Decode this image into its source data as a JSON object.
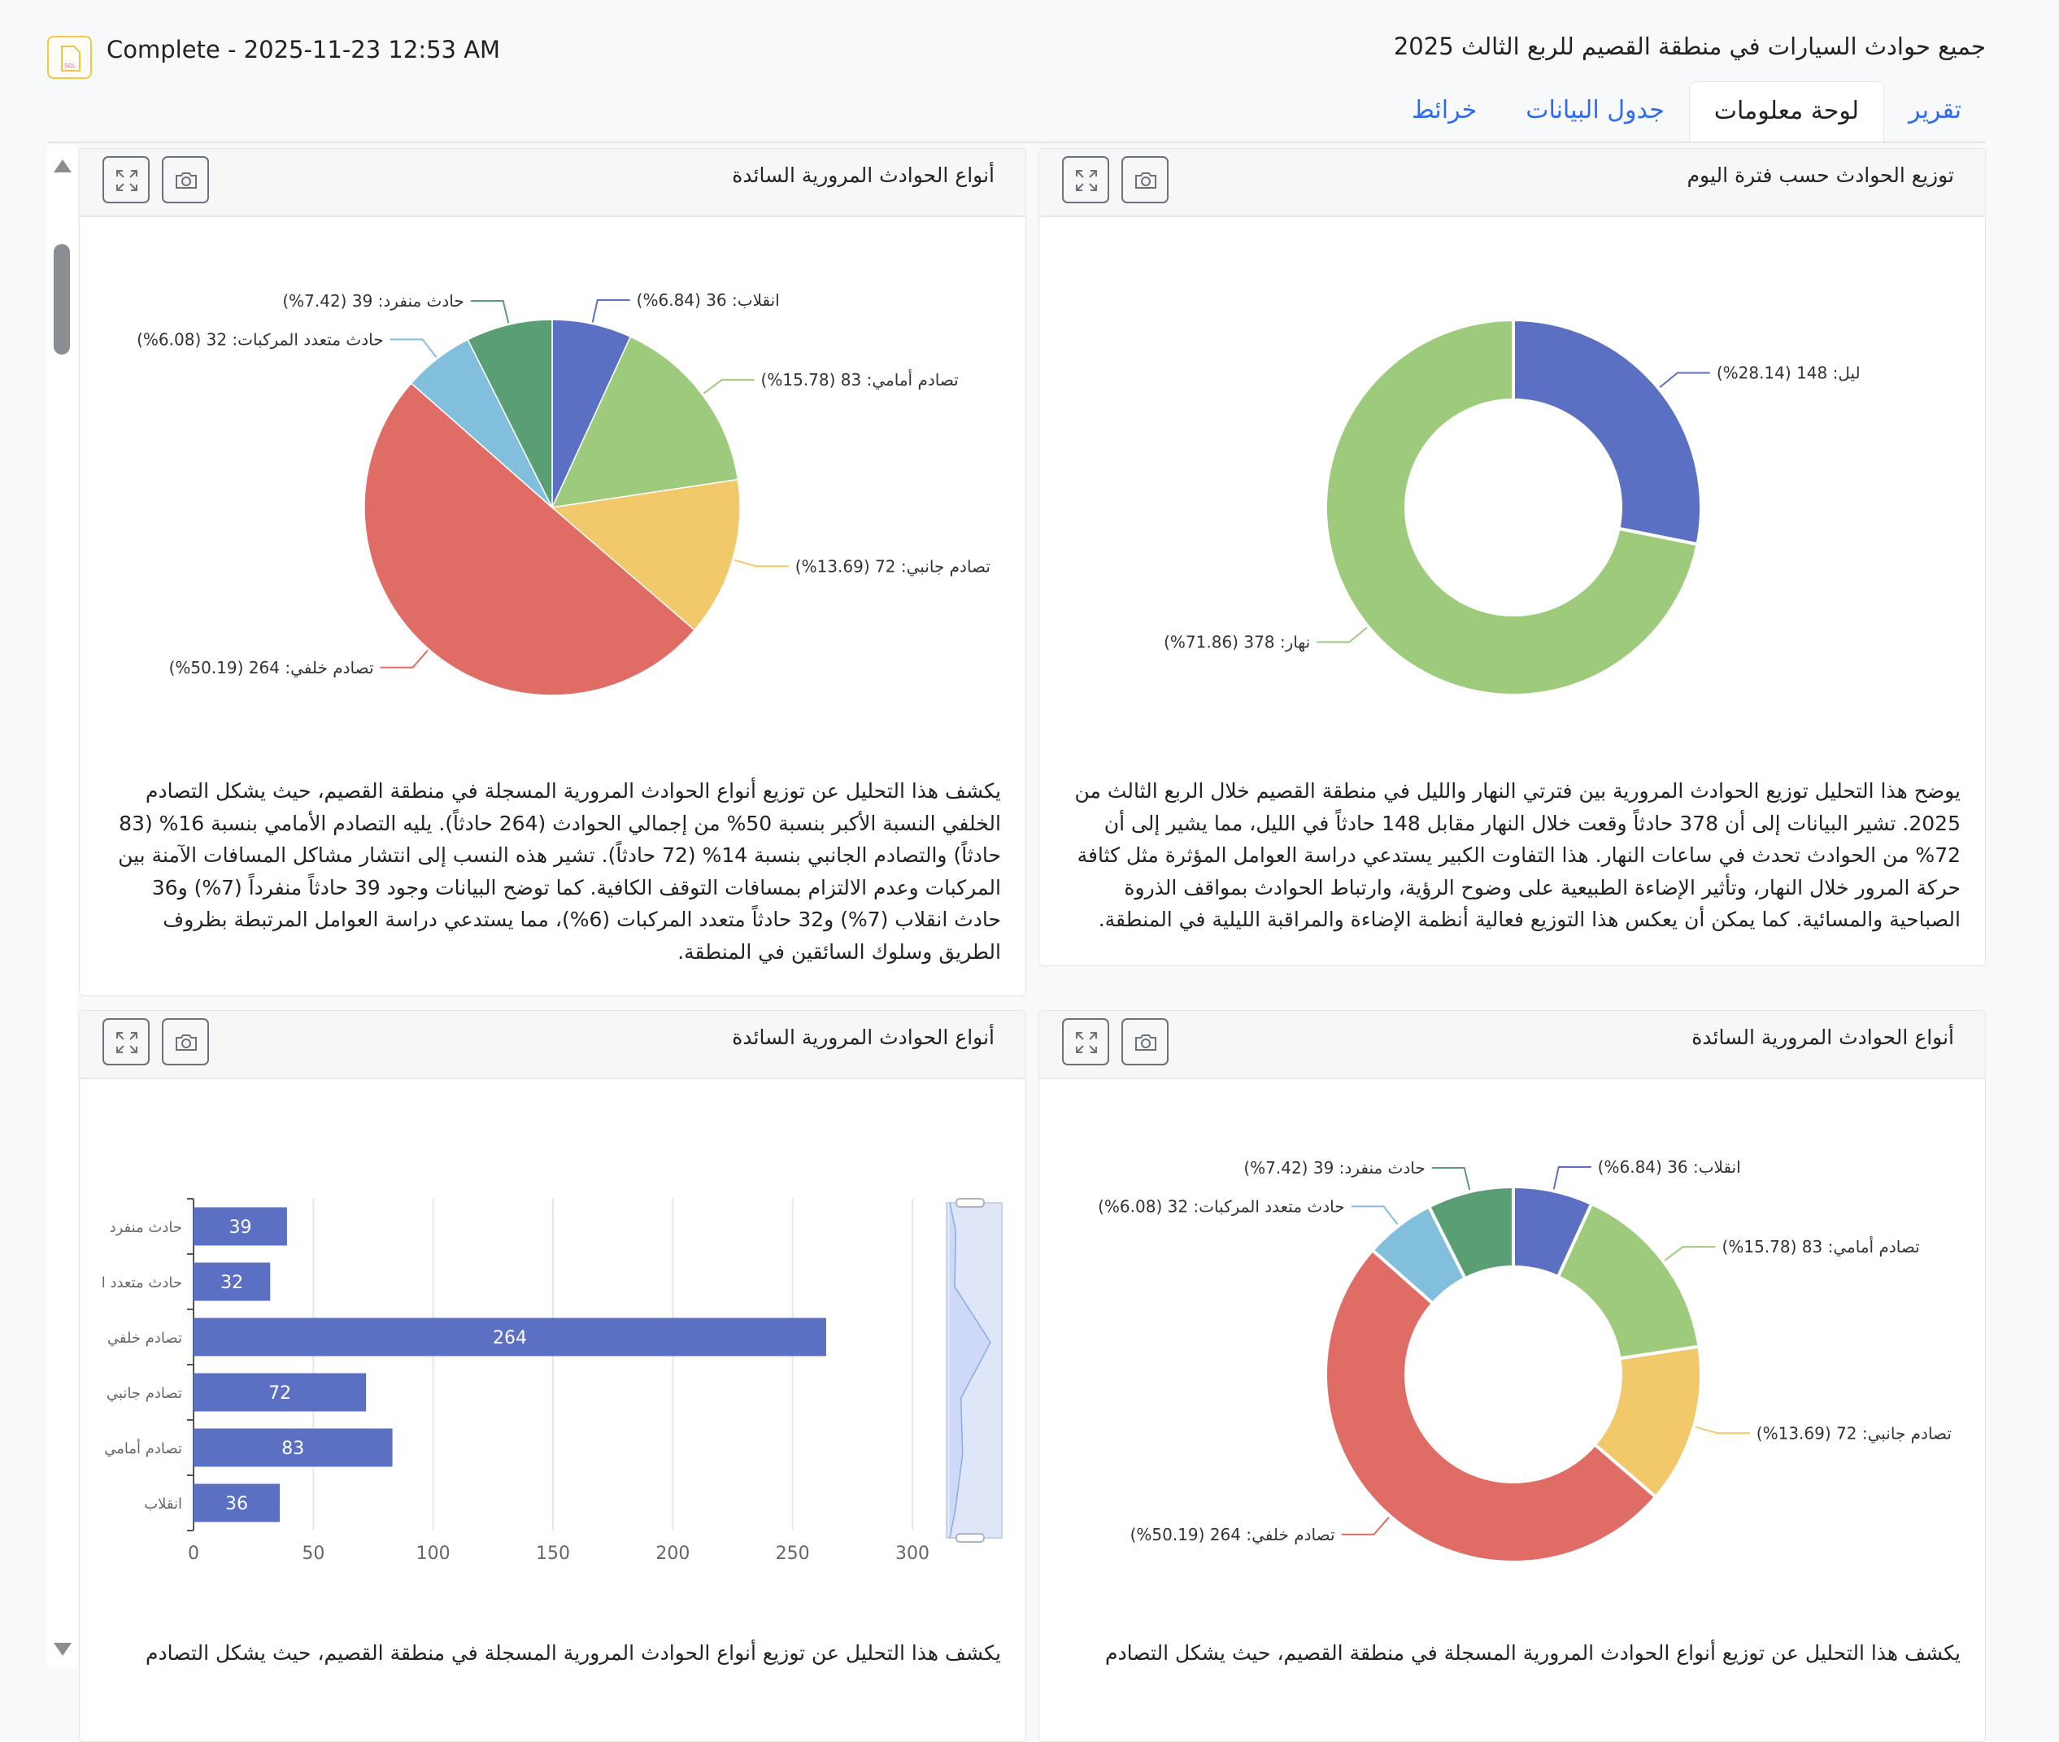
{
  "header": {
    "file_icon": "sql-file-icon",
    "status": "Complete - 2025-11-23 12:53 AM",
    "title": "جميع حوادث السيارات في منطقة القصيم للربع الثالث 2025"
  },
  "tabs": [
    {
      "label": "تقرير",
      "active": false
    },
    {
      "label": "لوحة معلومات",
      "active": true
    },
    {
      "label": "جدول البيانات",
      "active": false
    },
    {
      "label": "خرائط",
      "active": false
    }
  ],
  "panels": [
    {
      "title": "أنواع الحوادث المرورية السائدة",
      "description": "يكشف هذا التحليل عن توزيع أنواع الحوادث المرورية المسجلة في منطقة القصيم، حيث يشكل التصادم الخلفي النسبة الأكبر بنسبة 50% من إجمالي الحوادث (264 حادثاً). يليه التصادم الأمامي بنسبة 16% (83 حادثاً) والتصادم الجانبي بنسبة 14% (72 حادثاً). تشير هذه النسب إلى انتشار مشاكل المسافات الآمنة بين المركبات وعدم الالتزام بمسافات التوقف الكافية. كما توضح البيانات وجود 39 حادثاً منفرداً (7%) و36 حادث انقلاب (7%) و32 حادثاً متعدد المركبات (6%)، مما يستدعي دراسة العوامل المرتبطة بظروف الطريق وسلوك السائقين في المنطقة."
    },
    {
      "title": "توزيع الحوادث حسب فترة اليوم",
      "description": "يوضح هذا التحليل توزيع الحوادث المرورية بين فترتي النهار والليل في منطقة القصيم خلال الربع الثالث من 2025. تشير البيانات إلى أن 378 حادثاً وقعت خلال النهار مقابل 148 حادثاً في الليل، مما يشير إلى أن 72% من الحوادث تحدث في ساعات النهار. هذا التفاوت الكبير يستدعي دراسة العوامل المؤثرة مثل كثافة حركة المرور خلال النهار، وتأثير الإضاءة الطبيعية على وضوح الرؤية، وارتباط الحوادث بمواقف الذروة الصباحية والمسائية. كما يمكن أن يعكس هذا التوزيع فعالية أنظمة الإضاءة والمراقبة الليلية في المنطقة."
    },
    {
      "title": "أنواع الحوادث المرورية السائدة",
      "description": "يكشف هذا التحليل عن توزيع أنواع الحوادث المرورية المسجلة في منطقة القصيم، حيث يشكل التصادم"
    },
    {
      "title": "أنواع الحوادث المرورية السائدة",
      "description": "يكشف هذا التحليل عن توزيع أنواع الحوادث المرورية المسجلة في منطقة القصيم، حيث يشكل التصادم"
    }
  ],
  "panel_buttons": {
    "expand_icon": "expand-icon",
    "camera_icon": "camera-icon"
  },
  "chart_data": [
    {
      "type": "pie",
      "slices": [
        {
          "name": "انقلاب",
          "value": 36,
          "percent": 6.84,
          "label": "انقلاب: 36 (6.84%)",
          "color": "#5b70c3"
        },
        {
          "name": "تصادم أمامي",
          "value": 83,
          "percent": 15.78,
          "label": "تصادم أمامي: 83 (15.78%)",
          "color": "#9dca7b"
        },
        {
          "name": "تصادم جانبي",
          "value": 72,
          "percent": 13.69,
          "label": "تصادم جانبي: 72 (13.69%)",
          "color": "#f2c96a"
        },
        {
          "name": "تصادم خلفي",
          "value": 264,
          "percent": 50.19,
          "label": "تصادم خلفي: 264 (50.19%)",
          "color": "#e06c66"
        },
        {
          "name": "حادث متعدد المركبات",
          "value": 32,
          "percent": 6.08,
          "label": "حادث متعدد المركبات: 32 (6.08%)",
          "color": "#82bfdc"
        },
        {
          "name": "حادث منفرد",
          "value": 39,
          "percent": 7.42,
          "label": "حادث منفرد: 39 (7.42%)",
          "color": "#5a9e73"
        }
      ]
    },
    {
      "type": "donut",
      "slices": [
        {
          "name": "ليل",
          "value": 148,
          "percent": 28.14,
          "label": "ليل: 148 (28.14%)",
          "color": "#5b70c3"
        },
        {
          "name": "نهار",
          "value": 378,
          "percent": 71.86,
          "label": "نهار: 378 (71.86%)",
          "color": "#9dca7b"
        }
      ]
    },
    {
      "type": "bar",
      "orientation": "horizontal",
      "categories": [
        "حادث منفرد",
        "حادث متعدد ا",
        "تصادم خلفي",
        "تصادم جانبي",
        "تصادم أمامي",
        "انقلاب"
      ],
      "values": [
        39,
        32,
        264,
        72,
        83,
        36
      ],
      "xlim": [
        0,
        300
      ],
      "x_ticks": [
        "0",
        "50",
        "100",
        "150",
        "200",
        "250",
        "300"
      ],
      "grid": true,
      "color": "#5b70c3",
      "data_zoom": "vertical-slider"
    },
    {
      "type": "donut",
      "slices": [
        {
          "name": "انقلاب",
          "value": 36,
          "percent": 6.84,
          "label": "انقلاب: 36 (6.84%)",
          "color": "#5b70c3"
        },
        {
          "name": "تصادم أمامي",
          "value": 83,
          "percent": 15.78,
          "label": "تصادم أمامي: 83 (15.78%)",
          "color": "#9dca7b"
        },
        {
          "name": "تصادم جانبي",
          "value": 72,
          "percent": 13.69,
          "label": "تصادم جانبي: 72 (13.69%)",
          "color": "#f2c96a"
        },
        {
          "name": "تصادم خلفي",
          "value": 264,
          "percent": 50.19,
          "label": "تصادم خلفي: 264 (50.19%)",
          "color": "#e06c66"
        },
        {
          "name": "حادث متعدد المركبات",
          "value": 32,
          "percent": 6.08,
          "label": "حادث متعدد المركبات: 32 (6.08%)",
          "color": "#82bfdc"
        },
        {
          "name": "حادث منفرد",
          "value": 39,
          "percent": 7.42,
          "label": "حادث منفرد: 39 (7.42%)",
          "color": "#5a9e73"
        }
      ]
    }
  ]
}
